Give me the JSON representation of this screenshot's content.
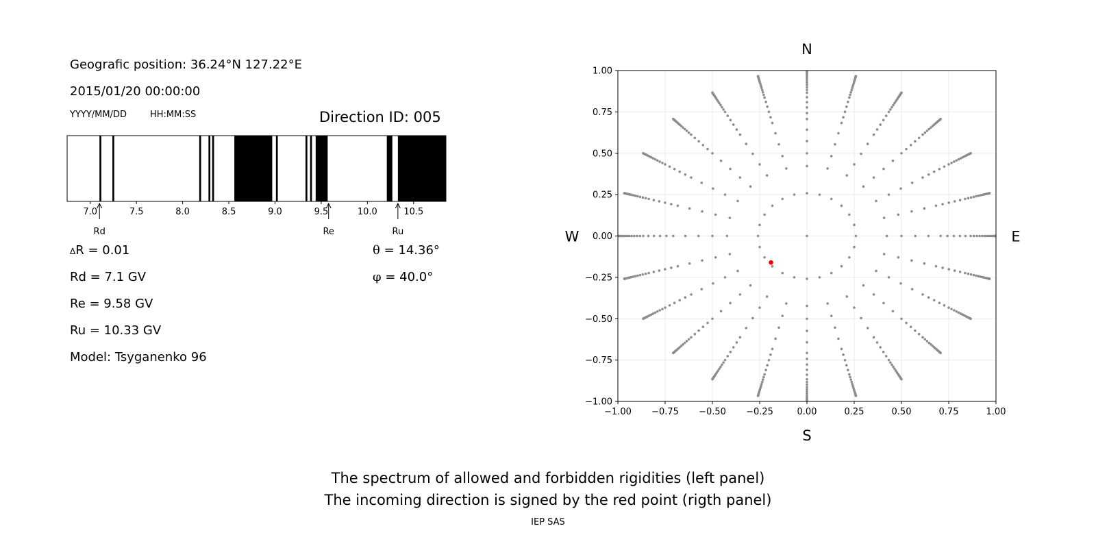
{
  "info": {
    "position": "Geografic position: 36.24°N 127.22°E",
    "datetime": "2015/01/20 00:00:00",
    "date_format": "YYYY/MM/DD",
    "time_format": "HH:MM:SS",
    "direction_id": "Direction ID: 005"
  },
  "params": {
    "delta_r_symbol": "Δ",
    "delta_r": "R = 0.01",
    "rd": "Rd = 7.1 GV",
    "re": "Re = 9.58 GV",
    "ru": "Ru = 10.33 GV",
    "model": "Model: Tsyganenko 96",
    "theta_symbol": "θ",
    "theta": " = 14.36°",
    "phi_symbol": "φ",
    "phi": " = 40.0°"
  },
  "captions": {
    "line1": "The spectrum of allowed and forbidden rigidities (left panel)",
    "line2": "The incoming direction is signed by the red point (rigth panel)",
    "credit": "IEP SAS"
  },
  "chart_data": [
    {
      "type": "bar",
      "xlim": [
        6.75,
        10.85
      ],
      "ticks": [
        7.0,
        7.5,
        8.0,
        8.5,
        9.0,
        9.5,
        10.0,
        10.5
      ],
      "tick_labels": [
        "7.0",
        "7.5",
        "8.0",
        "8.5",
        "9.0",
        "9.5",
        "10.0",
        "10.5"
      ],
      "forbidden_bands": [
        [
          7.1,
          7.12
        ],
        [
          7.24,
          7.26
        ],
        [
          8.18,
          8.2
        ],
        [
          8.28,
          8.3
        ],
        [
          8.32,
          8.34
        ],
        [
          8.56,
          8.97
        ],
        [
          9.01,
          9.03
        ],
        [
          9.33,
          9.35
        ],
        [
          9.38,
          9.4
        ],
        [
          9.44,
          9.57
        ],
        [
          10.21,
          10.27
        ],
        [
          10.33,
          10.85
        ]
      ],
      "markers": [
        {
          "label": "Rd",
          "value": 7.1
        },
        {
          "label": "Re",
          "value": 9.58
        },
        {
          "label": "Ru",
          "value": 10.33
        }
      ]
    },
    {
      "type": "scatter",
      "xlim": [
        -1.0,
        1.0
      ],
      "ylim": [
        -1.0,
        1.0
      ],
      "ticks": [
        -1.0,
        -0.75,
        -0.5,
        -0.25,
        0.0,
        0.25,
        0.5,
        0.75,
        1.0
      ],
      "xtick_labels": [
        "−1.00",
        "−0.75",
        "−0.50",
        "−0.25",
        "0.00",
        "0.25",
        "0.50",
        "0.75",
        "1.00"
      ],
      "ytick_labels": [
        "−1.00",
        "−0.75",
        "−0.50",
        "−0.25",
        "0.00",
        "0.25",
        "0.50",
        "0.75",
        "1.00"
      ],
      "grid": true,
      "compass": {
        "north": "N",
        "south": "S",
        "west": "W",
        "east": "E"
      },
      "point_color": "#8c8c8c",
      "highlight_color": "#ff0000",
      "grid_series": {
        "azimuth_step_deg": 15,
        "zenith_deg": [
          0,
          15,
          25,
          30,
          35,
          40,
          45,
          48,
          51,
          54,
          57,
          60,
          62,
          64,
          66,
          68,
          70,
          72,
          74,
          76,
          78,
          80,
          82,
          84,
          86,
          88,
          90
        ]
      },
      "highlight": {
        "x": -0.19,
        "y": -0.16
      }
    }
  ]
}
